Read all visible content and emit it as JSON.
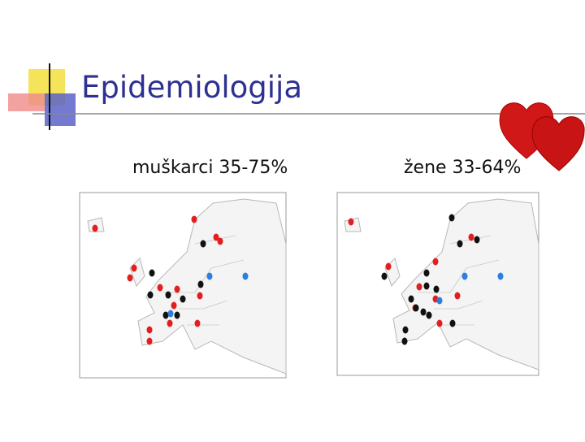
{
  "header": {
    "title": "Epidemiologija"
  },
  "panels": [
    {
      "label": "muškarci 35-75%"
    },
    {
      "label": "žene 33-64%"
    }
  ]
}
